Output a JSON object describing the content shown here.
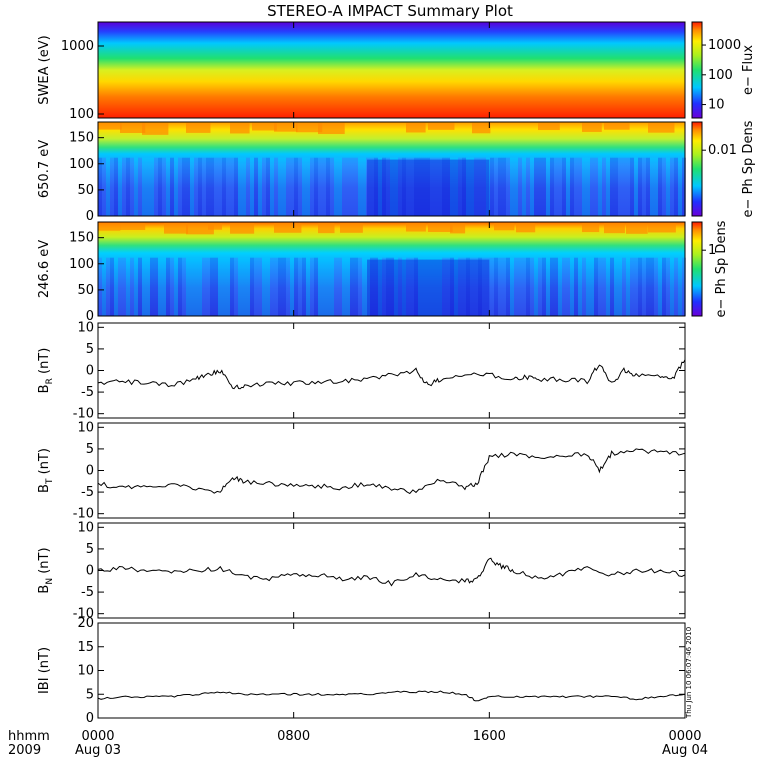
{
  "chart_data": {
    "title": "STEREO-A IMPACT Summary Plot",
    "x_axis": {
      "ticks": [
        "0000",
        "0800",
        "1600",
        "0000"
      ],
      "dates": [
        "Aug 03",
        "",
        "",
        "Aug 04"
      ],
      "left_label": "hhmm",
      "year_label": "2009",
      "range_hours": [
        0,
        24
      ]
    },
    "stamp": "Thu Jun 10 06:07:46 2010",
    "panels": [
      {
        "type": "heatmap",
        "ylabel": "SWEA (eV)",
        "yscale": "log",
        "ylim": [
          100,
          2000
        ],
        "yticks": [
          "1000",
          "100"
        ],
        "colorbar_label": "e− Flux",
        "colorbar_ticks": [
          "1000",
          "100",
          "10"
        ],
        "description_rows": "energy bands, high flux at low energy"
      },
      {
        "type": "heatmap",
        "ylabel": "650.7 eV",
        "ylim": [
          0,
          180
        ],
        "yticks": [
          "150",
          "100",
          "50",
          "0"
        ],
        "colorbar_label": "e− Ph Sp Dens",
        "colorbar_ticks": [
          "0.01"
        ]
      },
      {
        "type": "heatmap",
        "ylabel": "246.6 eV",
        "ylim": [
          0,
          180
        ],
        "yticks": [
          "150",
          "100",
          "50",
          "0"
        ],
        "colorbar_label": "e− Ph Sp Dens",
        "colorbar_ticks": [
          "1"
        ]
      },
      {
        "type": "line",
        "ylabel": "B_R (nT)",
        "ylabel_main": "B",
        "ylabel_sub": "R",
        "ylabel_unit": "(nT)",
        "ylim": [
          -11,
          11
        ],
        "yticks": [
          "10",
          "5",
          "0",
          "-5",
          "-10"
        ],
        "ytick_values": [
          10,
          5,
          0,
          -5,
          -10
        ],
        "x": [
          0,
          1,
          2,
          3,
          4,
          4.5,
          5,
          5.5,
          6,
          7,
          8,
          9,
          10,
          11,
          12,
          13,
          13.5,
          14,
          15,
          16,
          17,
          17.5,
          18,
          19,
          20,
          20.5,
          21,
          21.5,
          22,
          23,
          23.5,
          24
        ],
        "y": [
          -3,
          -2.5,
          -3,
          -3.5,
          -2,
          -1,
          0,
          -4,
          -3.5,
          -3,
          -3,
          -2.5,
          -2.5,
          -2,
          -1,
          0,
          -3.5,
          -2,
          -1,
          -1,
          -2,
          -1.5,
          -2,
          -2,
          -2.5,
          1.5,
          -3,
          0,
          -1,
          -1.5,
          -2,
          2.5
        ]
      },
      {
        "type": "line",
        "ylabel": "B_T (nT)",
        "ylabel_main": "B",
        "ylabel_sub": "T",
        "ylabel_unit": "(nT)",
        "ylim": [
          -11,
          11
        ],
        "yticks": [
          "10",
          "5",
          "0",
          "-5",
          "-10"
        ],
        "ytick_values": [
          10,
          5,
          0,
          -5,
          -10
        ],
        "x": [
          0,
          1,
          2,
          3,
          4,
          5,
          5.5,
          6,
          7,
          8,
          9,
          10,
          11,
          12,
          13,
          14,
          15,
          15.5,
          16,
          17,
          18,
          19,
          20,
          20.5,
          21,
          22,
          23,
          24
        ],
        "y": [
          -3,
          -4,
          -4,
          -3,
          -4,
          -5,
          -1.5,
          -2.5,
          -3,
          -3.5,
          -3.5,
          -4,
          -3,
          -4.5,
          -5,
          -2,
          -4,
          -3,
          3,
          4,
          3,
          3.5,
          4,
          0,
          4,
          4.5,
          4.5,
          4
        ]
      },
      {
        "type": "line",
        "ylabel": "B_N (nT)",
        "ylabel_main": "B",
        "ylabel_sub": "N",
        "ylabel_unit": "(nT)",
        "ylim": [
          -11,
          11
        ],
        "yticks": [
          "10",
          "5",
          "0",
          "-5",
          "-10"
        ],
        "ytick_values": [
          10,
          5,
          0,
          -5,
          -10
        ],
        "x": [
          0,
          1,
          2,
          3,
          4,
          5,
          6,
          7,
          8,
          9,
          10,
          11,
          12,
          13,
          14,
          15,
          15.5,
          16,
          16.5,
          17,
          18,
          19,
          20,
          21,
          22,
          23,
          24
        ],
        "y": [
          0,
          0.5,
          0,
          -0.5,
          0,
          0.5,
          -1.5,
          -2,
          -1,
          -1,
          -2,
          -1.5,
          -3,
          -1,
          -2,
          -2.5,
          -2,
          2.5,
          1,
          0,
          -2,
          -1,
          1,
          -1,
          0,
          0,
          -1
        ]
      },
      {
        "type": "line",
        "ylabel": "|B| (nT)",
        "ylabel_main": "IBI",
        "ylabel_sub": "",
        "ylabel_unit": "(nT)",
        "ylim": [
          0,
          20
        ],
        "yticks": [
          "20",
          "15",
          "10",
          "5",
          "0"
        ],
        "ytick_values": [
          20,
          15,
          10,
          5,
          0
        ],
        "x": [
          0,
          1,
          2,
          3,
          4,
          5,
          6,
          7,
          8,
          9,
          10,
          11,
          12,
          13,
          14,
          15,
          15.5,
          16,
          17,
          18,
          19,
          20,
          21,
          22,
          23,
          24
        ],
        "y": [
          4,
          4.5,
          4.5,
          4.5,
          5,
          5.5,
          5,
          5,
          5,
          5,
          5,
          5,
          5.5,
          5.5,
          5.5,
          5,
          3.5,
          4.5,
          4.5,
          4.5,
          4.5,
          4.5,
          4.5,
          4,
          4.5,
          5
        ]
      }
    ]
  }
}
